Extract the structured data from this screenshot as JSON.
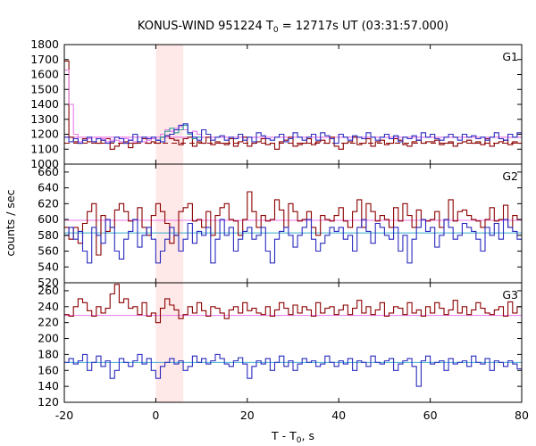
{
  "chart_data": {
    "type": "line",
    "title_main": "KONUS-WIND 951224 T",
    "title_sub": "0",
    "title_rest": " = 12717s UT (03:31:57.000)",
    "xlabel_main": "T - T",
    "xlabel_sub": "0",
    "xlabel_rest": ", s",
    "ylabel": "counts / sec",
    "xlim": [
      -20,
      80
    ],
    "x_ticks": [
      "-20",
      "0",
      "20",
      "40",
      "60",
      "80"
    ],
    "x_tick_values": [
      -20,
      0,
      20,
      40,
      60,
      80
    ],
    "highlight_interval": [
      0,
      6
    ],
    "colors": {
      "dark_red": "#8b0000",
      "blue": "#2b2bbf",
      "pink": "#e879e8",
      "cyan": "#33aacc",
      "teal": "#2aa198",
      "magenta_bg": "#e060e0",
      "highlight": "#ffe8e8"
    },
    "panels": [
      {
        "label": "G1",
        "ylim": [
          1000,
          1800
        ],
        "y_ticks": [
          1000,
          1100,
          1200,
          1300,
          1400,
          1500,
          1600,
          1700,
          1800
        ],
        "bg_levels": [
          {
            "color": "dark_red",
            "value": 1140,
            "dash": true
          },
          {
            "color": "magenta_bg",
            "value": 1180,
            "dash": false
          }
        ],
        "series": [
          {
            "color": "dark_red",
            "x0": -20,
            "dx": 1,
            "values": [
              1690,
              1180,
              1150,
              1140,
              1170,
              1150,
              1150,
              1140,
              1160,
              1170,
              1100,
              1120,
              1140,
              1150,
              1110,
              1140,
              1150,
              1170,
              1140,
              1150,
              1140,
              1180,
              1190,
              1170,
              1160,
              1130,
              1170,
              1180,
              1120,
              1150,
              1140,
              1180,
              1130,
              1150,
              1140,
              1130,
              1170,
              1120,
              1150,
              1180,
              1120,
              1140,
              1150,
              1170,
              1130,
              1140,
              1100,
              1150,
              1160,
              1180,
              1120,
              1130,
              1140,
              1170,
              1130,
              1150,
              1160,
              1140,
              1180,
              1120,
              1100,
              1140,
              1150,
              1180,
              1130,
              1140,
              1170,
              1120,
              1150,
              1160,
              1130,
              1140,
              1170,
              1160,
              1130,
              1120,
              1150,
              1160,
              1140,
              1150,
              1150,
              1160,
              1130,
              1140,
              1150,
              1120,
              1140,
              1150,
              1160,
              1140,
              1150,
              1130,
              1170,
              1120,
              1140,
              1150,
              1160,
              1130,
              1150,
              1140
            ]
          },
          {
            "color": "pink",
            "x0": -20,
            "dx": 1,
            "values": [
              1630,
              1400,
              1200,
              1150,
              1160,
              1170,
              1150,
              1180,
              1170,
              1150,
              1160,
              1160,
              1150,
              1170,
              1160,
              1150,
              1180,
              1150,
              1160,
              1170,
              1160,
              1200,
              1230,
              1220,
              1240,
              1250,
              1230,
              1210,
              1220,
              1200
            ]
          },
          {
            "color": "teal",
            "x0": 0,
            "dx": 1,
            "values": [
              1160,
              1180,
              1220,
              1240,
              1210,
              1230,
              1260,
              1200,
              1170,
              1180
            ]
          },
          {
            "color": "blue",
            "x0": -20,
            "dx": 1,
            "values": [
              1180,
              1150,
              1170,
              1140,
              1160,
              1180,
              1150,
              1170,
              1160,
              1140,
              1150,
              1180,
              1170,
              1140,
              1160,
              1200,
              1150,
              1180,
              1170,
              1180,
              1160,
              1150,
              1190,
              1200,
              1230,
              1260,
              1270,
              1210,
              1180,
              1160,
              1230,
              1200,
              1160,
              1180,
              1190,
              1160,
              1180,
              1170,
              1200,
              1160,
              1180,
              1150,
              1210,
              1190,
              1170,
              1160,
              1180,
              1200,
              1150,
              1170,
              1210,
              1180,
              1160,
              1180,
              1200,
              1160,
              1210,
              1190,
              1170,
              1140,
              1200,
              1180,
              1160,
              1190,
              1180,
              1170,
              1210,
              1180,
              1160,
              1180,
              1200,
              1170,
              1190,
              1150,
              1180,
              1170,
              1190,
              1160,
              1210,
              1180,
              1200,
              1170,
              1160,
              1180,
              1200,
              1180,
              1160,
              1200,
              1180,
              1190,
              1170,
              1180,
              1160,
              1180,
              1210,
              1170,
              1160,
              1200,
              1180,
              1210
            ]
          }
        ]
      },
      {
        "label": "G2",
        "ylim": [
          520,
          670
        ],
        "y_ticks": [
          520,
          540,
          560,
          580,
          600,
          620,
          640,
          660
        ],
        "bg_levels": [
          {
            "color": "pink",
            "value": 599,
            "dash": false
          },
          {
            "color": "cyan",
            "value": 583,
            "dash": false
          }
        ],
        "series": [
          {
            "color": "dark_red",
            "x0": -20,
            "dx": 1,
            "values": [
              590,
              575,
              590,
              570,
              595,
              610,
              620,
              555,
              605,
              585,
              590,
              612,
              620,
              610,
              598,
              600,
              615,
              590,
              580,
              605,
              620,
              610,
              595,
              570,
              580,
              610,
              615,
              620,
              598,
              600,
              590,
              610,
              580,
              605,
              615,
              620,
              600,
              598,
              580,
              600,
              635,
              610,
              590,
              605,
              598,
              600,
              625,
              612,
              590,
              620,
              610,
              598,
              600,
              610,
              590,
              580,
              605,
              600,
              598,
              605,
              615,
              598,
              590,
              610,
              625,
              590,
              620,
              610,
              598,
              605,
              600,
              590,
              615,
              598,
              620,
              605,
              590,
              612,
              600,
              598,
              600,
              610,
              590,
              600,
              625,
              598,
              610,
              612,
              605,
              600,
              598,
              590,
              600,
              615,
              598,
              600,
              618,
              590,
              605,
              600
            ]
          },
          {
            "color": "blue",
            "x0": -20,
            "dx": 1,
            "values": [
              580,
              590,
              575,
              585,
              560,
              545,
              590,
              580,
              570,
              600,
              590,
              560,
              550,
              575,
              585,
              600,
              565,
              580,
              590,
              575,
              545,
              560,
              575,
              590,
              580,
              560,
              575,
              595,
              570,
              585,
              580,
              590,
              545,
              575,
              600,
              580,
              590,
              560,
              575,
              585,
              590,
              575,
              580,
              590,
              560,
              545,
              575,
              585,
              590,
              580,
              565,
              580,
              590,
              600,
              575,
              560,
              570,
              580,
              590,
              585,
              590,
              575,
              580,
              560,
              590,
              600,
              585,
              570,
              595,
              590,
              580,
              575,
              590,
              560,
              580,
              545,
              575,
              590,
              600,
              585,
              590,
              565,
              580,
              600,
              590,
              575,
              580,
              595,
              590,
              585,
              575,
              560,
              590,
              580,
              595,
              575,
              600,
              590,
              585,
              575
            ]
          }
        ]
      },
      {
        "label": "G3",
        "ylim": [
          120,
          270
        ],
        "y_ticks": [
          120,
          140,
          160,
          180,
          200,
          220,
          240,
          260
        ],
        "bg_levels": [
          {
            "color": "pink",
            "value": 229,
            "dash": false
          },
          {
            "color": "cyan",
            "value": 170,
            "dash": false
          }
        ],
        "series": [
          {
            "color": "dark_red",
            "x0": -20,
            "dx": 1,
            "values": [
              230,
              228,
              240,
              250,
              245,
              235,
              228,
              240,
              232,
              238,
              256,
              268,
              245,
              250,
              238,
              240,
              230,
              245,
              228,
              232,
              220,
              238,
              250,
              242,
              236,
              225,
              230,
              240,
              232,
              245,
              235,
              228,
              240,
              238,
              232,
              225,
              236,
              240,
              232,
              245,
              235,
              238,
              232,
              230,
              240,
              228,
              236,
              245,
              238,
              230,
              242,
              232,
              240,
              236,
              228,
              245,
              232,
              238,
              240,
              230,
              236,
              242,
              230,
              238,
              248,
              232,
              240,
              230,
              236,
              245,
              228,
              232,
              240,
              238,
              230,
              245,
              232,
              236,
              228,
              240,
              232,
              245,
              238,
              230,
              236,
              248,
              232,
              240,
              230,
              236,
              245,
              238,
              232,
              230,
              236,
              240,
              228,
              246,
              232,
              240
            ]
          },
          {
            "color": "blue",
            "x0": -20,
            "dx": 1,
            "values": [
              170,
              175,
              168,
              172,
              180,
              160,
              170,
              178,
              165,
              172,
              150,
              160,
              175,
              170,
              165,
              172,
              180,
              168,
              175,
              160,
              150,
              165,
              170,
              175,
              168,
              172,
              160,
              165,
              178,
              170,
              175,
              168,
              172,
              180,
              175,
              168,
              165,
              172,
              176,
              168,
              150,
              165,
              172,
              168,
              175,
              160,
              170,
              178,
              165,
              172,
              160,
              168,
              175,
              170,
              172,
              165,
              168,
              178,
              170,
              165,
              172,
              168,
              175,
              160,
              172,
              170,
              165,
              178,
              170,
              168,
              172,
              175,
              160,
              168,
              172,
              175,
              165,
              140,
              172,
              178,
              168,
              170,
              172,
              160,
              175,
              168,
              170,
              172,
              165,
              178,
              170,
              168,
              175,
              160,
              172,
              170,
              165,
              172,
              168,
              162
            ]
          }
        ]
      }
    ]
  }
}
